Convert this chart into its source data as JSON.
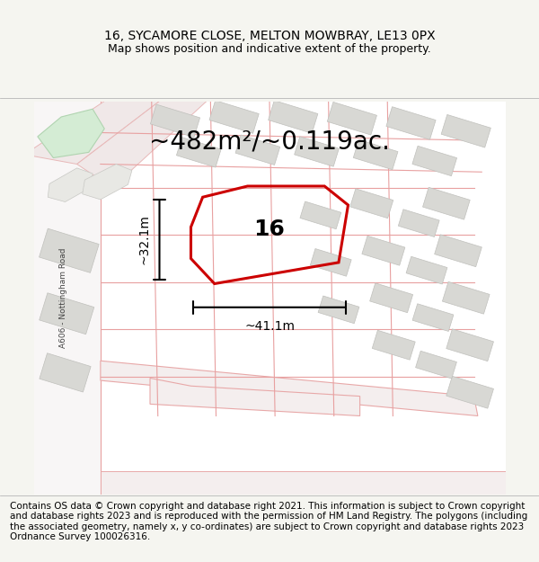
{
  "title_line1": "16, SYCAMORE CLOSE, MELTON MOWBRAY, LE13 0PX",
  "title_line2": "Map shows position and indicative extent of the property.",
  "area_text": "~482m²/~0.119ac.",
  "dim_vertical": "~32.1m",
  "dim_horizontal": "~41.1m",
  "property_number": "16",
  "road_label": "A606 - Nottingham Road",
  "copyright_text": "Contains OS data © Crown copyright and database right 2021. This information is subject to Crown copyright and database rights 2023 and is reproduced with the permission of HM Land Registry. The polygons (including the associated geometry, namely x, y co-ordinates) are subject to Crown copyright and database rights 2023 Ordnance Survey 100026316.",
  "bg_color": "#f5f5f0",
  "map_bg": "#ffffff",
  "building_color": "#d8d8d4",
  "building_outline": "#c0c0bc",
  "road_color": "#f0e8e8",
  "road_outline": "#e8b8b8",
  "property_outline": "#cc0000",
  "green_color": "#d4ecd4",
  "title_fontsize": 10,
  "subtitle_fontsize": 9,
  "area_fontsize": 20,
  "dim_fontsize": 10,
  "number_fontsize": 18,
  "copyright_fontsize": 7.5
}
